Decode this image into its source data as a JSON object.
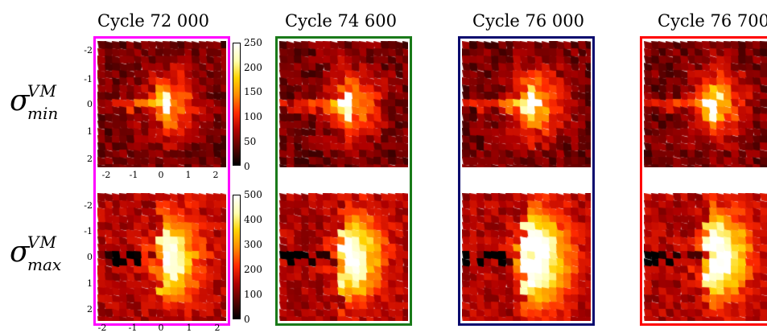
{
  "panels": [
    {
      "title": "Cycle 72 000",
      "frame_color": "#ff00ff"
    },
    {
      "title": "Cycle 74 600",
      "frame_color": "#1a7a1a"
    },
    {
      "title": "Cycle 76 000",
      "frame_color": "#0a0a6e"
    },
    {
      "title": "Cycle 76 700",
      "frame_color": "#ff0000"
    }
  ],
  "rows": [
    {
      "label_symbol": "σ",
      "label_superscript": "VM",
      "label_subscript": "min",
      "colorbar_ticks": [
        "250",
        "200",
        "150",
        "100",
        "50",
        "0"
      ],
      "colorbar_range": [
        0,
        250
      ]
    },
    {
      "label_symbol": "σ",
      "label_superscript": "VM",
      "label_subscript": "max",
      "colorbar_ticks": [
        "500",
        "400",
        "300",
        "200",
        "100",
        "0"
      ],
      "colorbar_range": [
        0,
        500
      ]
    }
  ],
  "axis_ticks": {
    "y": [
      "-2",
      "-1",
      "0",
      "1",
      "2"
    ],
    "x": [
      "-2",
      "-1",
      "0",
      "1",
      "2"
    ]
  },
  "colormap": [
    "#000000",
    "#5a0000",
    "#b00000",
    "#ff2a00",
    "#ff8a00",
    "#ffd200",
    "#ffffb0",
    "#ffffff"
  ]
}
